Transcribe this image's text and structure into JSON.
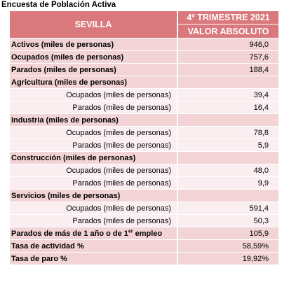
{
  "caption": "Encuesta de Población Activa",
  "header": {
    "city": "SEVILLA",
    "period": "4º TRIMESTRE 2021",
    "value_label": "VALOR ABSOLUTO"
  },
  "rows": [
    {
      "label": "Activos (miles de personas)",
      "value": "946,0"
    },
    {
      "label": "Ocupados (miles de personas)",
      "value": "757,6"
    },
    {
      "label": "Parados (miles de personas)",
      "value": "188,4"
    },
    {
      "label": "Agricultura (miles de personas)",
      "value": ""
    },
    {
      "label": "Ocupados (miles de personas)",
      "value": "39,4"
    },
    {
      "label": "Parados (miles de personas)",
      "value": "16,4"
    },
    {
      "label": "Industria (miles de personas)",
      "value": ""
    },
    {
      "label": "Ocupados (miles de personas)",
      "value": "78,8"
    },
    {
      "label": "Parados (miles de personas)",
      "value": "5,9"
    },
    {
      "label": "Construcción (miles de personas)",
      "value": ""
    },
    {
      "label": "Ocupados (miles de personas)",
      "value": "48,0"
    },
    {
      "label": "Parados (miles de personas)",
      "value": "9,9"
    },
    {
      "label": "Servicios (miles de personas)",
      "value": ""
    },
    {
      "label": "Ocupados (miles de personas)",
      "value": "591,4"
    },
    {
      "label": "Parados (miles de personas)",
      "value": "50,3"
    },
    {
      "label_a": "Parados de más de 1 año o de 1",
      "label_sup": "er",
      "label_b": " empleo",
      "value": "105,9"
    },
    {
      "label": "Tasa de actividad %",
      "value": "58,59%"
    },
    {
      "label": "Tasa de paro %",
      "value": "19,92%"
    }
  ]
}
